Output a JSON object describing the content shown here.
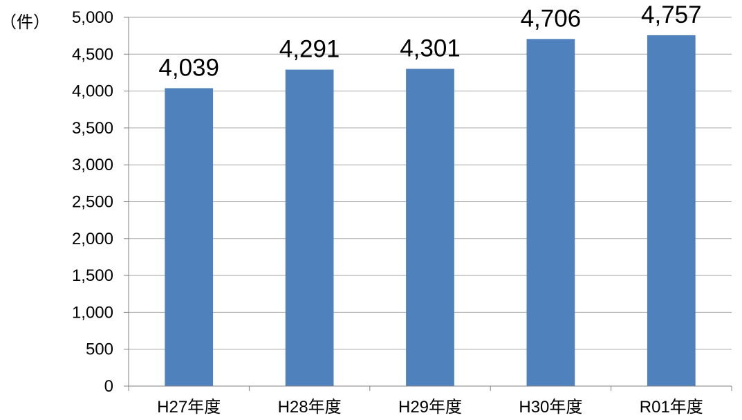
{
  "chart_data": {
    "type": "bar",
    "title": "",
    "xlabel": "",
    "ylabel": "",
    "unit_label": "（件）",
    "categories": [
      "H27年度",
      "H28年度",
      "H29年度",
      "H30年度",
      "R01年度"
    ],
    "values": [
      4039,
      4291,
      4301,
      4706,
      4757
    ],
    "value_labels": [
      "4,039",
      "4,291",
      "4,301",
      "4,706",
      "4,757"
    ],
    "y_ticks": [
      0,
      500,
      1000,
      1500,
      2000,
      2500,
      3000,
      3500,
      4000,
      4500,
      5000
    ],
    "y_tick_labels": [
      "0",
      "500",
      "1,000",
      "1,500",
      "2,000",
      "2,500",
      "3,000",
      "3,500",
      "4,000",
      "4,500",
      "5,000"
    ],
    "ylim": [
      0,
      5000
    ],
    "grid": true,
    "legend": "none",
    "colors": {
      "bar": "#4F81BD",
      "grid": "#A6A6A6",
      "axis": "#808080"
    }
  }
}
